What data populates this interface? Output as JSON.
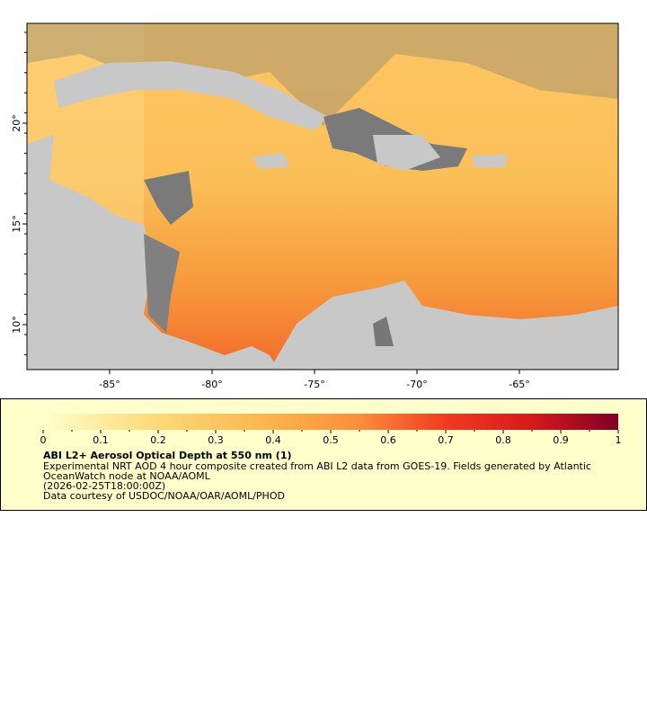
{
  "map": {
    "lon_labels": [
      "-85°",
      "-80°",
      "-75°",
      "-70°",
      "-65°"
    ],
    "lat_labels": [
      "10°",
      "15°",
      "20°"
    ]
  },
  "legend": {
    "colorbar_labels": [
      "0",
      "0.1",
      "0.2",
      "0.3",
      "0.4",
      "0.5",
      "0.6",
      "0.7",
      "0.8",
      "0.9",
      "1"
    ],
    "title": "ABI L2+ Aerosol Optical Depth at 550 nm (1)",
    "lines": [
      "Experimental NRT AOD 4 hour composite created from ABI L2 data from GOES-19. Fields generated by Atlantic",
      "OceanWatch node at NOAA/AOML",
      "(2026-02-25T18:00:00Z)",
      "Data courtesy of USDOC/NOAA/OAR/AOML/PHOD"
    ]
  }
}
